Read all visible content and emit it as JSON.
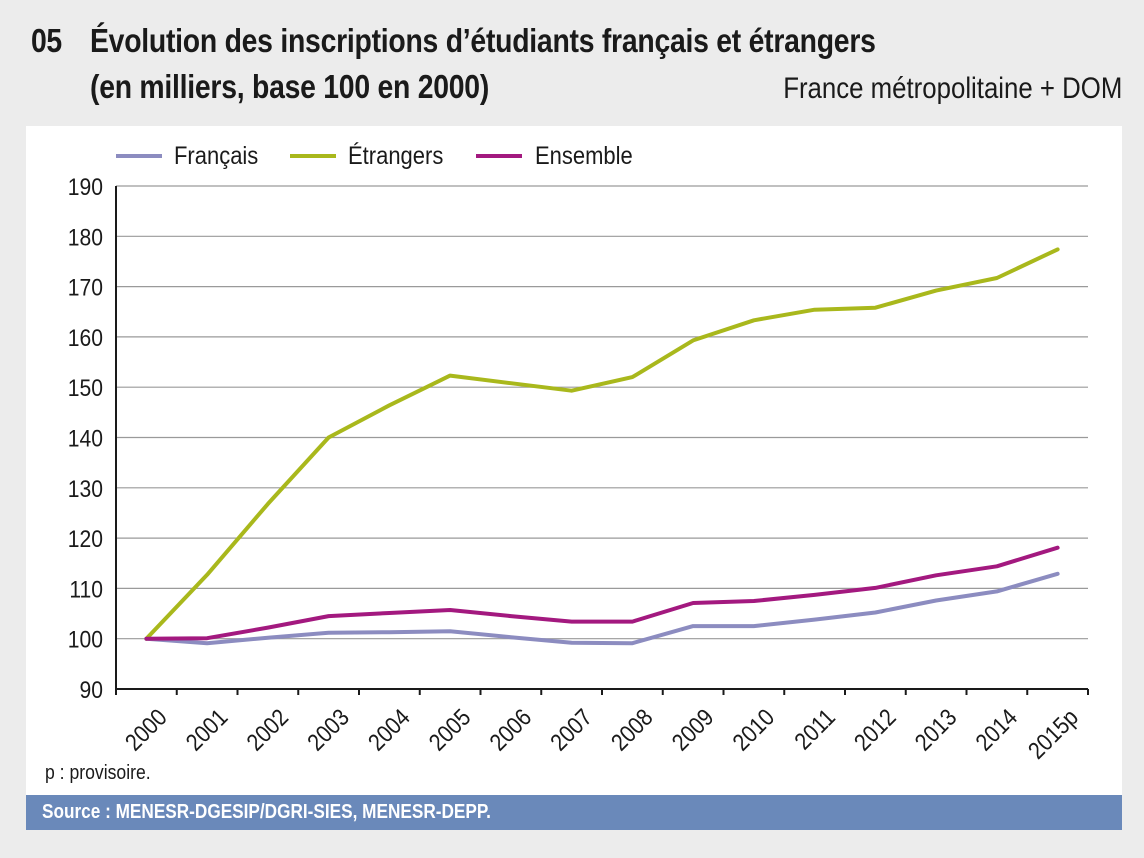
{
  "header": {
    "number": "05",
    "title_line1": "Évolution des inscriptions d’étudiants français et étrangers",
    "title_line2": "(en milliers, base 100 en 2000)",
    "subtitle": "France métropolitaine + DOM"
  },
  "footer": {
    "note": "p : provisoire.",
    "source": "Source :  MENESR-DGESIP/DGRI-SIES, MENESR-DEPP."
  },
  "colors": {
    "background": "#ececec",
    "source_bar": "#6a89ba"
  },
  "chart_data": {
    "type": "line",
    "title": "Évolution des inscriptions d’étudiants français et étrangers (en milliers, base 100 en 2000)",
    "xlabel": "",
    "ylabel": "",
    "categories": [
      "2000",
      "2001",
      "2002",
      "2003",
      "2004",
      "2005",
      "2006",
      "2007",
      "2008",
      "2009",
      "2010",
      "2011",
      "2012",
      "2013",
      "2014",
      "2015p"
    ],
    "ylim": [
      90,
      190
    ],
    "yticks": [
      90,
      100,
      110,
      120,
      130,
      140,
      150,
      160,
      170,
      180,
      190
    ],
    "grid": true,
    "legend_position": "top-left",
    "series": [
      {
        "name": "Français",
        "color": "#8c8cc0",
        "values": [
          100,
          99.1,
          100.2,
          101.2,
          101.3,
          101.5,
          100.3,
          99.2,
          99.1,
          102.5,
          102.5,
          103.8,
          105.2,
          107.6,
          109.4,
          112.9
        ]
      },
      {
        "name": "Étrangers",
        "color": "#a9b81c",
        "values": [
          100,
          112.7,
          126.8,
          140.0,
          146.4,
          152.3,
          150.8,
          149.3,
          152.0,
          159.3,
          163.3,
          165.4,
          165.8,
          169.2,
          171.7,
          177.4
        ]
      },
      {
        "name": "Ensemble",
        "color": "#a3197f",
        "values": [
          100,
          100.1,
          102.2,
          104.5,
          105.1,
          105.7,
          104.5,
          103.4,
          103.4,
          107.1,
          107.5,
          108.7,
          110.1,
          112.6,
          114.4,
          118.1
        ]
      }
    ]
  }
}
